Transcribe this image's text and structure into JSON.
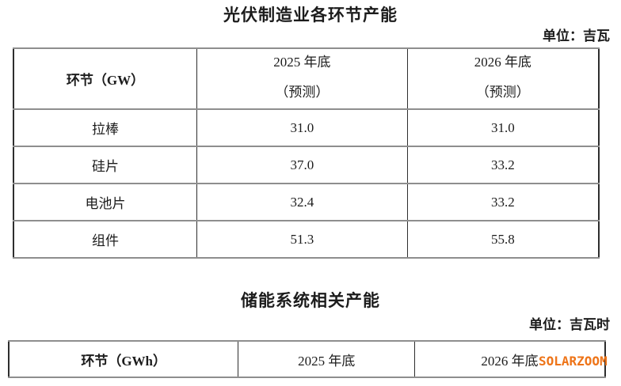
{
  "table1": {
    "title": "光伏制造业各环节产能",
    "unit": "单位：吉瓦",
    "header": {
      "col1": "环节（GW）",
      "col2_line1": "2025 年底",
      "col2_line2": "（预测）",
      "col3_line1": "2026 年底",
      "col3_line2": "（预测）"
    },
    "rows": [
      {
        "label": "拉棒",
        "v2025": "31.0",
        "v2026": "31.0"
      },
      {
        "label": "硅片",
        "v2025": "37.0",
        "v2026": "33.2"
      },
      {
        "label": "电池片",
        "v2025": "32.4",
        "v2026": "33.2"
      },
      {
        "label": "组件",
        "v2025": "51.3",
        "v2026": "55.8"
      }
    ]
  },
  "table2": {
    "title": "储能系统相关产能",
    "unit": "单位：吉瓦时",
    "header": {
      "col1": "环节（GWh）",
      "col2": "2025 年底",
      "col3": "2026 年底"
    }
  },
  "watermark": {
    "text": "SOLARZOOM",
    "color": "#ee7418"
  }
}
